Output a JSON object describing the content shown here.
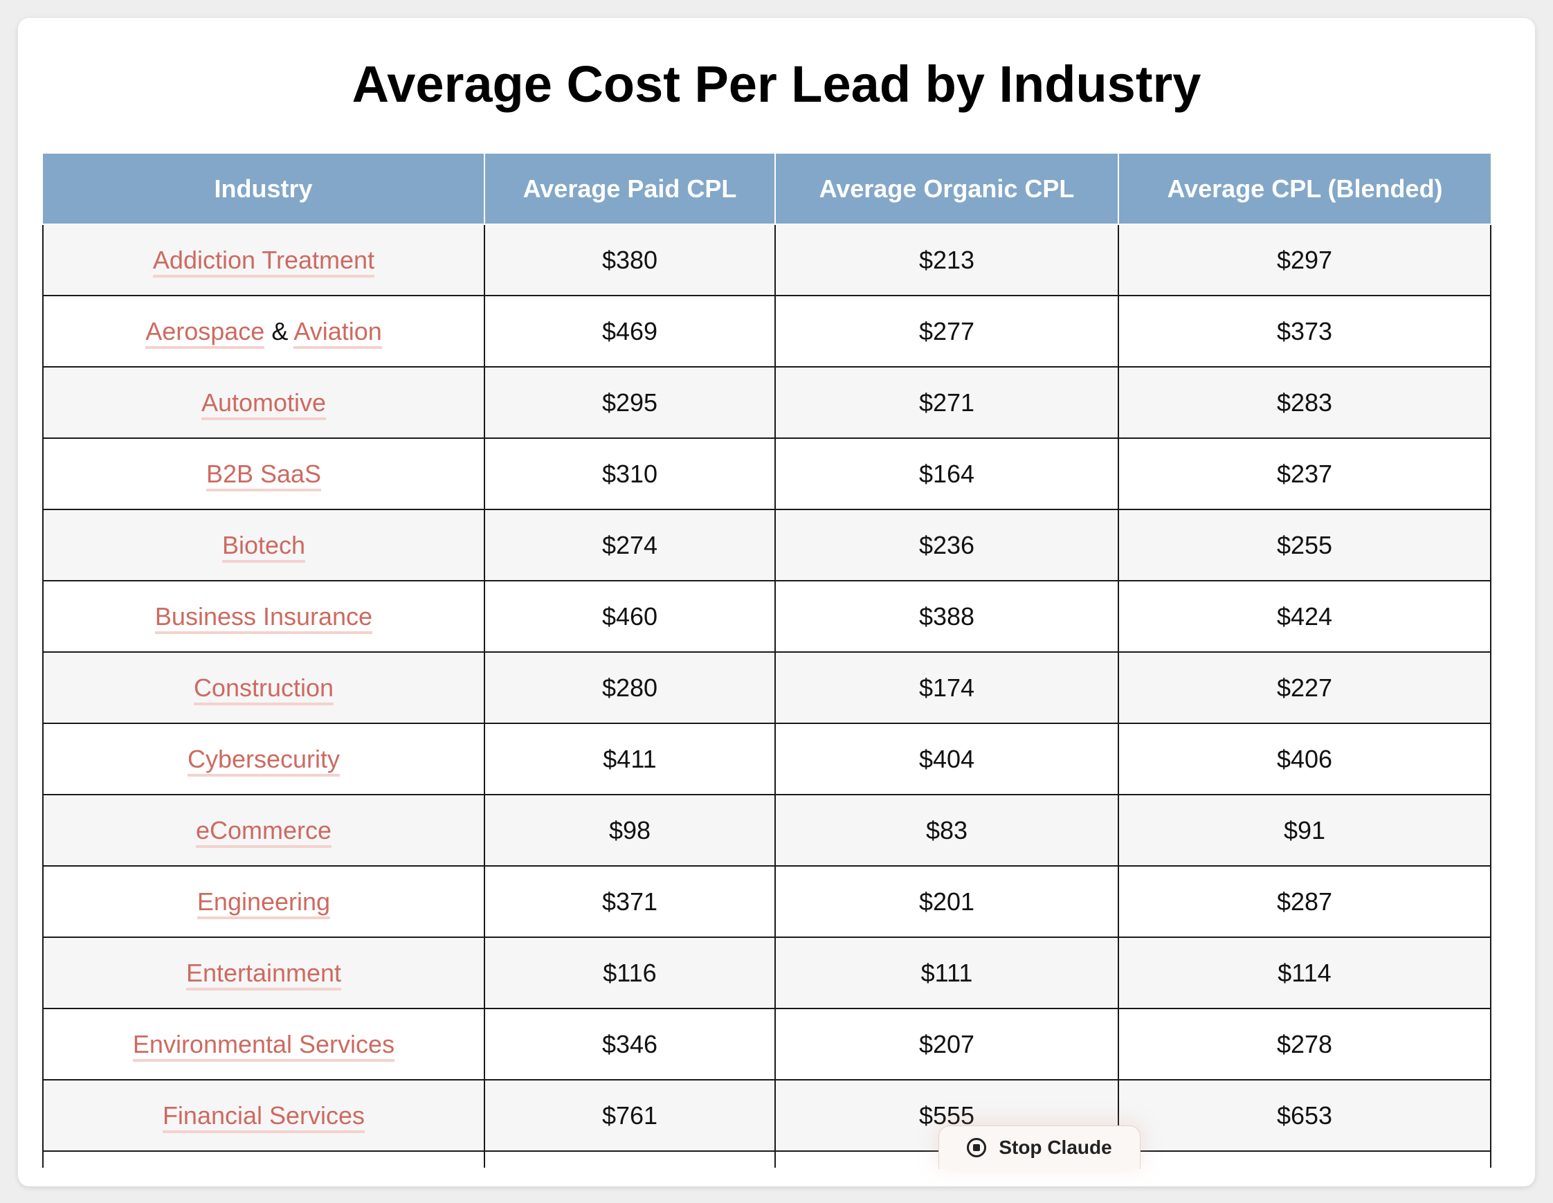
{
  "page": {
    "title": "Average Cost Per Lead by Industry"
  },
  "table": {
    "headers": [
      "Industry",
      "Average Paid CPL",
      "Average Organic CPL",
      "Average CPL (Blended)"
    ],
    "rows": [
      {
        "industry": "Addiction Treatment",
        "paid": "$380",
        "organic": "$213",
        "blended": "$297"
      },
      {
        "industry_a": "Aerospace",
        "industry_sep": "&",
        "industry_b": "Aviation",
        "paid": "$469",
        "organic": "$277",
        "blended": "$373"
      },
      {
        "industry": "Automotive",
        "paid": "$295",
        "organic": "$271",
        "blended": "$283"
      },
      {
        "industry": "B2B SaaS",
        "paid": "$310",
        "organic": "$164",
        "blended": "$237"
      },
      {
        "industry": "Biotech",
        "paid": "$274",
        "organic": "$236",
        "blended": "$255"
      },
      {
        "industry": "Business Insurance",
        "paid": "$460",
        "organic": "$388",
        "blended": "$424"
      },
      {
        "industry": "Construction",
        "paid": "$280",
        "organic": "$174",
        "blended": "$227"
      },
      {
        "industry": "Cybersecurity",
        "paid": "$411",
        "organic": "$404",
        "blended": "$406"
      },
      {
        "industry": "eCommerce",
        "paid": "$98",
        "organic": "$83",
        "blended": "$91"
      },
      {
        "industry": "Engineering",
        "paid": "$371",
        "organic": "$201",
        "blended": "$287"
      },
      {
        "industry": "Entertainment",
        "paid": "$116",
        "organic": "$111",
        "blended": "$114"
      },
      {
        "industry": "Environmental Services",
        "paid": "$346",
        "organic": "$207",
        "blended": "$278"
      },
      {
        "industry": "Financial Services",
        "paid": "$761",
        "organic": "$555",
        "blended": "$653"
      }
    ]
  },
  "stop_button": {
    "label": "Stop Claude",
    "icon": "stop-circle-icon"
  },
  "colors": {
    "header_bg": "#82a7c8",
    "link": "#cd6a60",
    "link_underline": "#f3d2ce"
  }
}
